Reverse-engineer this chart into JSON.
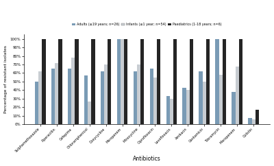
{
  "x_labels": [
    "Sulphamethoxazole",
    "Piperacillin",
    "Cefepime",
    "Chloramphenicol",
    "Doxycycline",
    "Meropenem",
    "Minocycline",
    "Ciprofloxacin",
    "Levofloxacin",
    "Amikacin",
    "Gentamicin",
    "Tobramycin",
    "Meropenem ",
    "Colistin"
  ],
  "adults": [
    50,
    65,
    65,
    57,
    62,
    100,
    62,
    65,
    33,
    43,
    62,
    100,
    38,
    7
  ],
  "infants": [
    62,
    72,
    78,
    27,
    70,
    100,
    70,
    55,
    30,
    40,
    50,
    58,
    68,
    6
  ],
  "paediatrics": [
    100,
    100,
    100,
    100,
    100,
    100,
    100,
    100,
    100,
    100,
    100,
    100,
    100,
    17
  ],
  "color_adults": "#7a9bb5",
  "color_infants": "#c8cdd2",
  "color_paediatrics": "#252525",
  "legend_labels": [
    "Adults (≥19 years; n=26)",
    "Infants (≤1 year; n=54)",
    "Paediatrics (1-18 years; n=6)"
  ],
  "ylabel": "Percentage of resistant isolates",
  "xlabel": "Antibiotics",
  "ylim": [
    0,
    100
  ],
  "yticks": [
    0,
    10,
    20,
    30,
    40,
    50,
    60,
    70,
    80,
    90,
    100
  ],
  "ytick_labels": [
    "0%",
    "10%",
    "20%",
    "30%",
    "40%",
    "50%",
    "60%",
    "70%",
    "80%",
    "90%",
    "100%"
  ]
}
